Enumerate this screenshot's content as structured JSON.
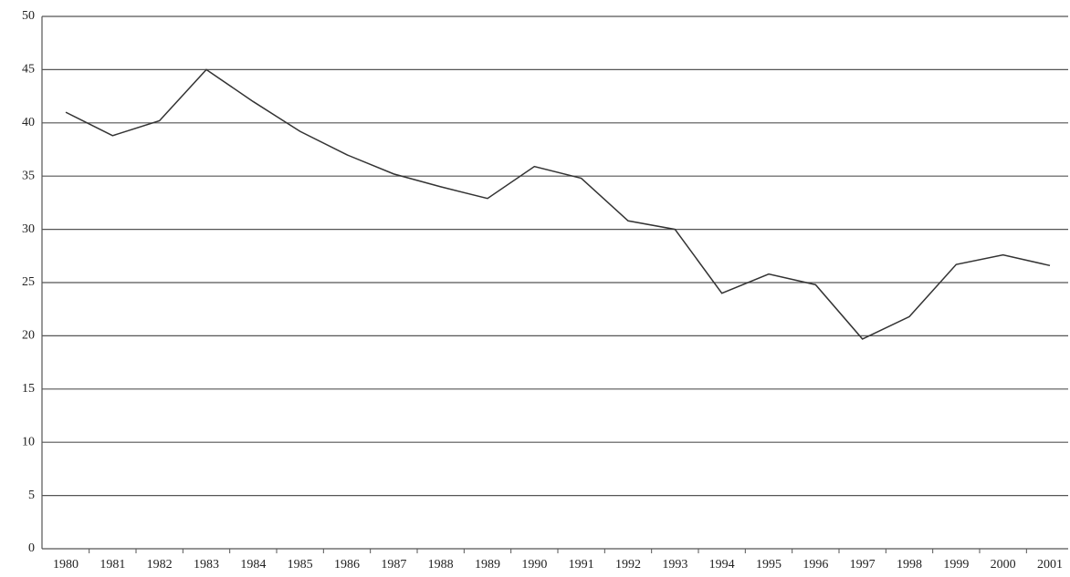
{
  "chart_data": {
    "type": "line",
    "categories": [
      "1980",
      "1981",
      "1982",
      "1983",
      "1984",
      "1985",
      "1986",
      "1987",
      "1988",
      "1989",
      "1990",
      "1991",
      "1992",
      "1993",
      "1994",
      "1995",
      "1996",
      "1997",
      "1998",
      "1999",
      "2000",
      "2001"
    ],
    "series": [
      {
        "color": "#333333",
        "values": [
          41,
          38.8,
          40.2,
          45,
          42,
          39.2,
          37,
          35.2,
          34,
          32.9,
          35.9,
          34.8,
          30.8,
          30,
          24,
          25.8,
          24.8,
          19.7,
          21.8,
          26.7,
          27.6,
          26.6
        ]
      }
    ],
    "ylim": [
      0,
      50
    ],
    "yticks": [
      0,
      5,
      10,
      15,
      20,
      25,
      30,
      35,
      40,
      45,
      50
    ],
    "grid": true
  }
}
